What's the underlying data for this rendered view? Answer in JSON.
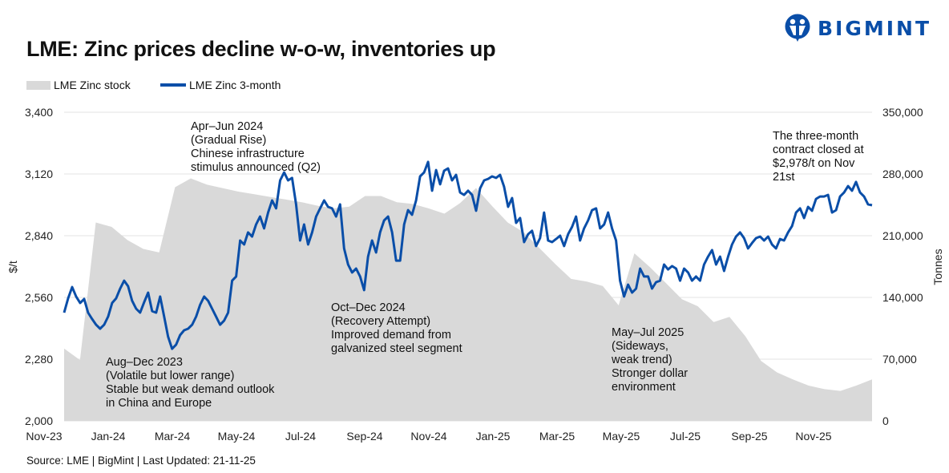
{
  "title": "LME: Zinc prices decline w-o-w, inventories up",
  "logo": {
    "text": "BIGMINT",
    "color": "#0a4ea8"
  },
  "source": "Source: LME | BigMint | Last Updated: 21-11-25",
  "chart_data": {
    "type": "line+area",
    "title": "LME: Zinc prices decline w-o-w, inventories up",
    "legend": {
      "placement": "top-left",
      "entries": [
        "LME Zinc stock",
        "LME Zinc 3-month"
      ]
    },
    "xlabel": "",
    "ylabel_left": "$/t",
    "ylabel_right": "Tonnes",
    "x_tick_labels": [
      "Nov-23",
      "Jan-24",
      "Mar-24",
      "May-24",
      "Jul-24",
      "Sep-24",
      "Nov-24",
      "Jan-25",
      "Mar-25",
      "May-25",
      "Jul-25",
      "Sep-25",
      "Nov-25"
    ],
    "y_left": {
      "range": [
        2000,
        3400
      ],
      "ticks": [
        "2,000",
        "2,280",
        "2,560",
        "2,840",
        "3,120",
        "3,400"
      ]
    },
    "y_right": {
      "range": [
        0,
        350000
      ],
      "ticks": [
        "0",
        "70,000",
        "140,000",
        "210,000",
        "280,000",
        "350,000"
      ]
    },
    "grid": "horizontal",
    "colors": {
      "price": "#0a4ea8",
      "stock": "#d9d9d9",
      "grid": "#e3e3e3"
    },
    "series": [
      {
        "name": "LME Zinc stock",
        "axis": "right",
        "kind": "area",
        "values": [
          82000,
          69000,
          225000,
          220000,
          205000,
          195000,
          191000,
          265000,
          275000,
          268000,
          264000,
          260000,
          257000,
          254000,
          251000,
          248000,
          244000,
          241000,
          243000,
          255000,
          255000,
          248000,
          246000,
          241000,
          235000,
          247000,
          264000,
          244000,
          225000,
          214000,
          196000,
          178000,
          161000,
          158000,
          153000,
          131000,
          190000,
          174000,
          156000,
          138000,
          130000,
          112000,
          118000,
          96000,
          68000,
          55000,
          47000,
          40000,
          36000,
          34000,
          40000,
          47000
        ]
      },
      {
        "name": "LME Zinc 3-month",
        "axis": "left",
        "kind": "line",
        "values": [
          2491,
          2556,
          2607,
          2564,
          2535,
          2553,
          2491,
          2462,
          2436,
          2418,
          2436,
          2473,
          2535,
          2556,
          2600,
          2636,
          2611,
          2545,
          2509,
          2491,
          2538,
          2582,
          2498,
          2491,
          2564,
          2473,
          2382,
          2327,
          2346,
          2389,
          2411,
          2418,
          2436,
          2473,
          2527,
          2564,
          2545,
          2509,
          2473,
          2436,
          2455,
          2491,
          2636,
          2655,
          2818,
          2800,
          2855,
          2836,
          2891,
          2927,
          2873,
          2945,
          3000,
          2964,
          3091,
          3127,
          3091,
          3102,
          2982,
          2818,
          2891,
          2800,
          2855,
          2927,
          2964,
          3000,
          2971,
          2964,
          2927,
          2982,
          2782,
          2709,
          2673,
          2691,
          2655,
          2593,
          2745,
          2818,
          2764,
          2855,
          2909,
          2927,
          2855,
          2727,
          2727,
          2891,
          2956,
          2935,
          3000,
          3109,
          3127,
          3175,
          3044,
          3138,
          3073,
          3135,
          3145,
          3091,
          3116,
          3036,
          3025,
          3044,
          3025,
          2953,
          3055,
          3091,
          3098,
          3109,
          3102,
          3116,
          3062,
          2971,
          3011,
          2898,
          2920,
          2811,
          2847,
          2862,
          2793,
          2829,
          2945,
          2818,
          2811,
          2825,
          2840,
          2793,
          2847,
          2880,
          2927,
          2818,
          2873,
          2909,
          2956,
          2964,
          2873,
          2891,
          2945,
          2873,
          2818,
          2636,
          2564,
          2618,
          2582,
          2600,
          2691,
          2655,
          2655,
          2600,
          2629,
          2636,
          2709,
          2687,
          2702,
          2691,
          2636,
          2691,
          2673,
          2636,
          2655,
          2636,
          2709,
          2745,
          2775,
          2709,
          2745,
          2680,
          2745,
          2800,
          2836,
          2855,
          2829,
          2782,
          2807,
          2829,
          2836,
          2818,
          2836,
          2800,
          2782,
          2825,
          2818,
          2855,
          2884,
          2945,
          2964,
          2920,
          2971,
          2953,
          3007,
          3018,
          3018,
          3025,
          2945,
          2956,
          3018,
          3036,
          3065,
          3044,
          3084,
          3036,
          3018,
          2982,
          2978
        ]
      }
    ],
    "annotations": [
      {
        "lines": [
          "Apr–Jun 2024",
          "(Gradual Rise)",
          "Chinese infrastructure",
          "stimulus announced (Q2)"
        ]
      },
      {
        "lines": [
          "Aug–Dec 2023",
          "(Volatile but lower range)",
          "Stable but weak demand outlook",
          "in China and Europe"
        ]
      },
      {
        "lines": [
          "Oct–Dec 2024",
          "(Recovery Attempt)",
          "Improved demand from",
          "galvanized steel segment"
        ]
      },
      {
        "lines": [
          "May–Jul 2025",
          "(Sideways,",
          "weak trend)",
          "Stronger dollar",
          "environment"
        ]
      },
      {
        "lines": [
          "The three-month",
          "contract closed at",
          "$2,978/t on Nov",
          "21st"
        ]
      }
    ]
  }
}
